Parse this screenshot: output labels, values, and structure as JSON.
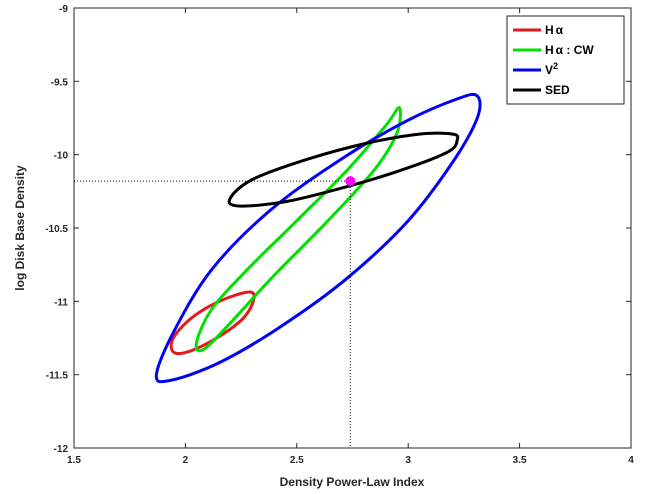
{
  "chart_data": {
    "type": "scatter",
    "xlabel": "Density Power-Law Index",
    "ylabel": "log Disk Base Density",
    "xlim": [
      1.5,
      4
    ],
    "ylim": [
      -12,
      -9
    ],
    "x_ticks": [
      1.5,
      2,
      2.5,
      3,
      3.5,
      4
    ],
    "y_ticks": [
      -12,
      -11.5,
      -11,
      -10.5,
      -10,
      -9.5,
      -9
    ],
    "x_tick_labels": [
      "1.5",
      "2",
      "2.5",
      "3",
      "3.5",
      "4"
    ],
    "y_tick_labels": [
      "-12",
      "-11.5",
      "-11",
      "-10.5",
      "-10",
      "-9.5",
      "-9"
    ],
    "grid": false,
    "legend_position": "top-right",
    "best_fit_point": {
      "x": 2.74,
      "y": -10.18,
      "color": "#ff00ff"
    },
    "series": [
      {
        "name": "H",
        "name_suffix": "α",
        "sup": "",
        "color": "#e31a1c",
        "points": [
          [
            2.3,
            -10.94
          ],
          [
            2.22,
            -10.96
          ],
          [
            2.1,
            -11.04
          ],
          [
            2.0,
            -11.15
          ],
          [
            1.94,
            -11.27
          ],
          [
            1.95,
            -11.35
          ],
          [
            2.02,
            -11.34
          ],
          [
            2.14,
            -11.25
          ],
          [
            2.25,
            -11.13
          ],
          [
            2.3,
            -11.02
          ]
        ]
      },
      {
        "name": "H",
        "name_suffix": "α : CW",
        "sup": "",
        "color": "#00e000",
        "points": [
          [
            2.96,
            -9.68
          ],
          [
            2.9,
            -9.8
          ],
          [
            2.73,
            -10.1
          ],
          [
            2.5,
            -10.45
          ],
          [
            2.28,
            -10.78
          ],
          [
            2.12,
            -11.05
          ],
          [
            2.05,
            -11.28
          ],
          [
            2.08,
            -11.33
          ],
          [
            2.2,
            -11.15
          ],
          [
            2.4,
            -10.82
          ],
          [
            2.64,
            -10.45
          ],
          [
            2.85,
            -10.1
          ],
          [
            2.95,
            -9.85
          ]
        ]
      },
      {
        "name": "V",
        "name_suffix": "",
        "sup": "2",
        "color": "#0000ff",
        "points": [
          [
            3.31,
            -9.6
          ],
          [
            3.22,
            -9.62
          ],
          [
            2.98,
            -9.78
          ],
          [
            2.68,
            -10.05
          ],
          [
            2.38,
            -10.38
          ],
          [
            2.12,
            -10.78
          ],
          [
            1.95,
            -11.2
          ],
          [
            1.87,
            -11.5
          ],
          [
            1.93,
            -11.54
          ],
          [
            2.15,
            -11.42
          ],
          [
            2.42,
            -11.18
          ],
          [
            2.72,
            -10.85
          ],
          [
            3.0,
            -10.45
          ],
          [
            3.2,
            -10.05
          ],
          [
            3.31,
            -9.75
          ]
        ]
      },
      {
        "name": "SED",
        "name_suffix": "",
        "sup": "",
        "color": "#000000",
        "points": [
          [
            3.2,
            -9.86
          ],
          [
            3.05,
            -9.86
          ],
          [
            2.82,
            -9.92
          ],
          [
            2.55,
            -10.03
          ],
          [
            2.3,
            -10.17
          ],
          [
            2.2,
            -10.3
          ],
          [
            2.24,
            -10.35
          ],
          [
            2.45,
            -10.32
          ],
          [
            2.72,
            -10.22
          ],
          [
            2.98,
            -10.1
          ],
          [
            3.18,
            -9.98
          ],
          [
            3.22,
            -9.9
          ]
        ]
      }
    ]
  }
}
